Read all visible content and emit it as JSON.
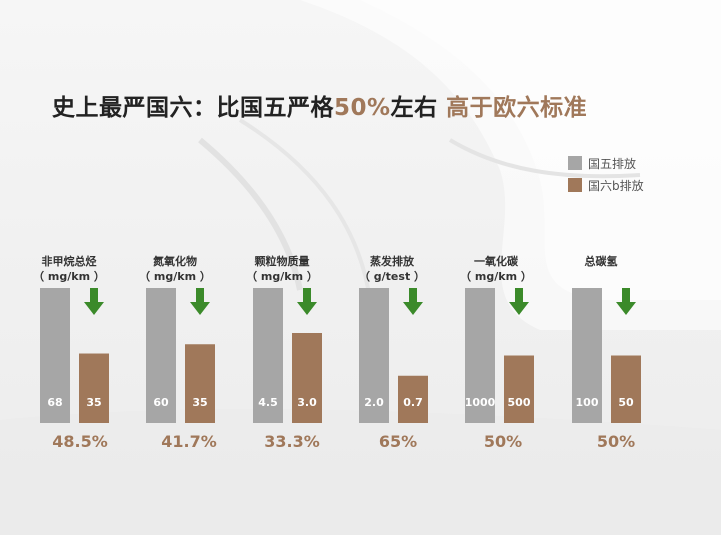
{
  "title": {
    "part1": "史上最严国六：比国五严格",
    "highlight1": "50%",
    "part2": "左右 ",
    "highlight2": "高于欧六标准"
  },
  "legend": [
    "国五排放",
    "国六b排放"
  ],
  "colors": {
    "guo5": "#a6a6a6",
    "guo6": "#a0785a",
    "arrow": "#3b8a2a",
    "percent": "#a0785a",
    "title_highlight": "#a0785a"
  },
  "chart_data": {
    "type": "bar",
    "categories": [
      {
        "name": "非甲烷总烃",
        "unit": "（ mg/km ）",
        "guo5": 68,
        "guo6": 35,
        "guo5_label": "68",
        "guo6_label": "35",
        "reduction": "48.5%"
      },
      {
        "name": "氮氧化物",
        "unit": "（ mg/km ）",
        "guo5": 60,
        "guo6": 35,
        "guo5_label": "60",
        "guo6_label": "35",
        "reduction": "41.7%"
      },
      {
        "name": "颗粒物质量",
        "unit": "（ mg/km ）",
        "guo5": 4.5,
        "guo6": 3.0,
        "guo5_label": "4.5",
        "guo6_label": "3.0",
        "reduction": "33.3%"
      },
      {
        "name": "蒸发排放",
        "unit": "（ g/test ）",
        "guo5": 2.0,
        "guo6": 0.7,
        "guo5_label": "2.0",
        "guo6_label": "0.7",
        "reduction": "65%"
      },
      {
        "name": "一氧化碳",
        "unit": "（ mg/km ）",
        "guo5": 1000,
        "guo6": 500,
        "guo5_label": "1000",
        "guo6_label": "500",
        "reduction": "50%"
      },
      {
        "name": "总碳氢",
        "unit": "",
        "guo5": 100,
        "guo6": 50,
        "guo5_label": "100",
        "guo6_label": "50",
        "reduction": "50%"
      }
    ],
    "series": [
      {
        "name": "国五排放",
        "key": "guo5"
      },
      {
        "name": "国六b排放",
        "key": "guo6"
      }
    ],
    "scale": "each category normalized to its own 国五 value"
  }
}
